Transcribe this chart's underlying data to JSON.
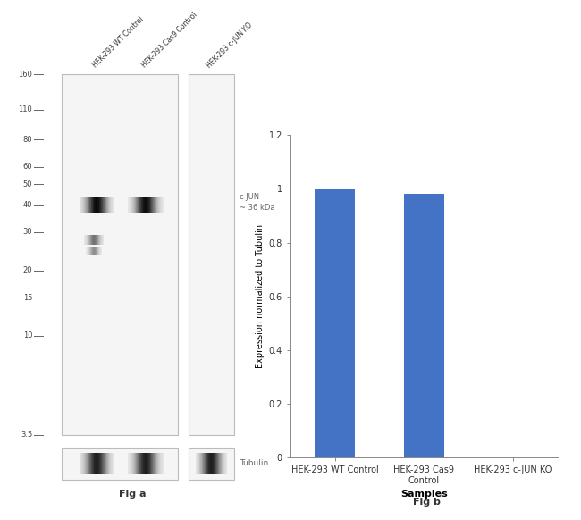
{
  "fig_size": [
    6.5,
    5.82
  ],
  "dpi": 100,
  "background_color": "#ffffff",
  "wb_panel": {
    "lane_labels": [
      "HEK-293 WT Control",
      "HEK-293 Cas9 Control",
      "HEK-293 c-JUN KO"
    ],
    "mw_markers": [
      160,
      110,
      80,
      60,
      50,
      40,
      30,
      20,
      15,
      10,
      3.5
    ],
    "band_annotation": "c-JUN\n~ 36 kDa",
    "tubulin_label": "Tubulin",
    "fig_label": "Fig a",
    "gel_bg": "#f5f5f5",
    "gel_border": "#bbbbbb",
    "band_dark_color": "#1a1a1a",
    "band_mid_color": "#888888",
    "mw_text_color": "#444444",
    "mw_line_color": "#666666",
    "annotation_color": "#666666"
  },
  "bar_panel": {
    "categories": [
      "HEK-293 WT Control",
      "HEK-293 Cas9\nControl",
      "HEK-293 c-JUN KO"
    ],
    "values": [
      1.0,
      0.98,
      0.0
    ],
    "bar_color": "#4472c4",
    "ylabel": "Expression normalized to Tubulin",
    "xlabel": "Samples",
    "ylim": [
      0,
      1.2
    ],
    "yticks": [
      0,
      0.2,
      0.4,
      0.6,
      0.8,
      1.0,
      1.2
    ],
    "fig_label": "Fig b",
    "ylabel_fontsize": 7,
    "xlabel_fontsize": 8,
    "tick_fontsize": 7,
    "xlabel_fontweight": "bold"
  }
}
